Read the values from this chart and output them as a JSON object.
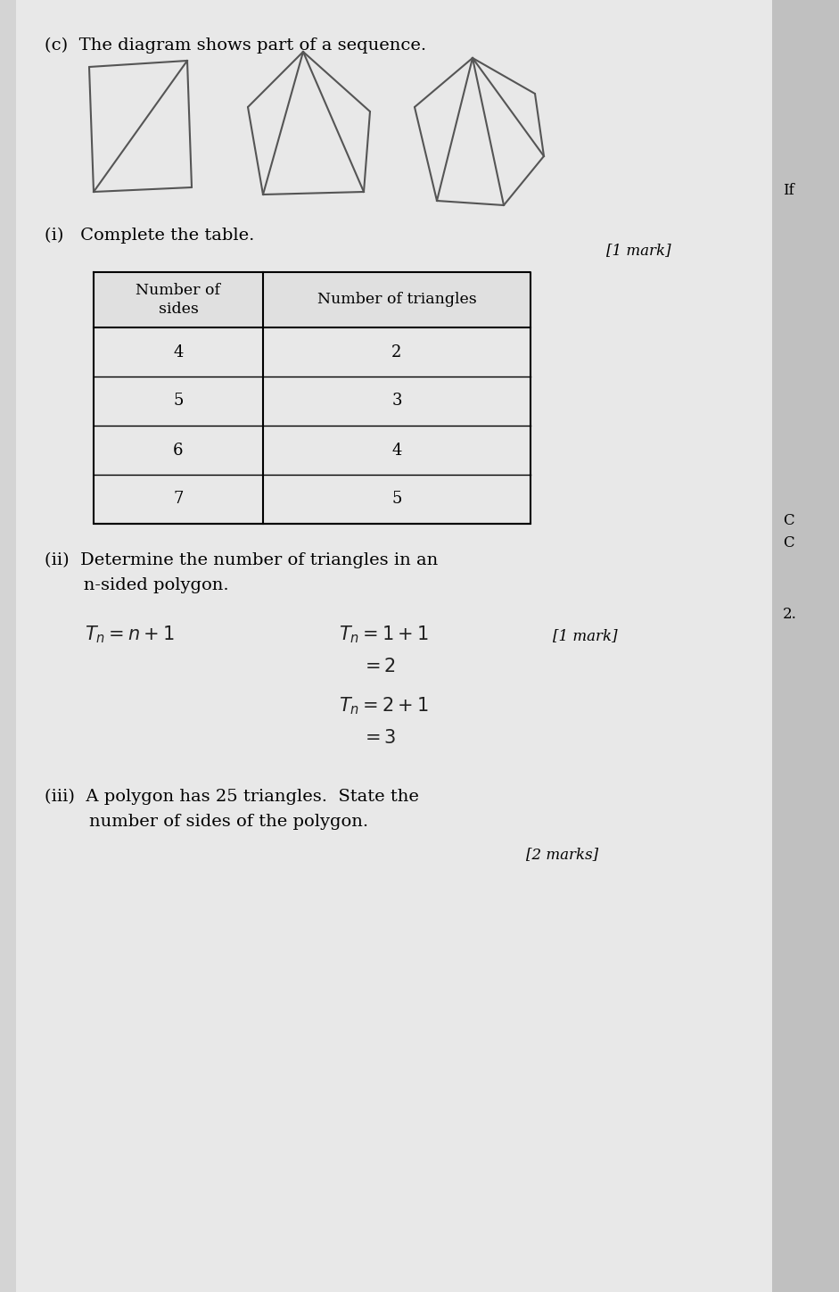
{
  "bg_color": "#d4d4d4",
  "page_color": "#e8e8e8",
  "title_text": "(c)  The diagram shows part of a sequence.",
  "mark_1": "[1 mark]",
  "mark_2": "[1 mark]",
  "mark_3": "[2 marks]",
  "table_headers": [
    "Number of\nsides",
    "Number of triangles"
  ],
  "table_data": [
    [
      "4",
      "2"
    ],
    [
      "5",
      "3"
    ],
    [
      "6",
      "4"
    ],
    [
      "7",
      "5"
    ]
  ],
  "part_i_label": "(i)   Complete the table.",
  "part_ii_label_1": "(ii)  Determine the number of triangles in an",
  "part_ii_label_2": "       n-sided polygon.",
  "part_iii_label_1": "(iii)  A polygon has 25 triangles.  State the",
  "part_iii_label_2": "        number of sides of the polygon.",
  "right_margin_if": "If",
  "right_margin_c": "C\nC",
  "right_margin_2": "2."
}
